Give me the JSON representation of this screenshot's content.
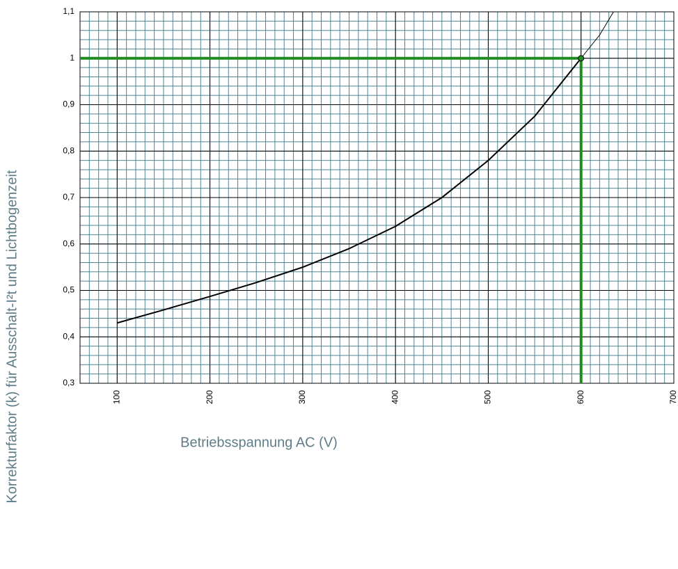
{
  "chart_data": {
    "type": "line",
    "xlabel": "Betriebsspannung AC (V)",
    "ylabel": "Korrekturfaktor (k) für Ausschalt-I²t und Lichtbogenzeit",
    "xlim": [
      60,
      700
    ],
    "ylim": [
      0.3,
      1.1
    ],
    "xticks": [
      100,
      200,
      300,
      400,
      500,
      600,
      700
    ],
    "yticks": [
      {
        "value": 0.3,
        "label": "0,3"
      },
      {
        "value": 0.4,
        "label": "0,4"
      },
      {
        "value": 0.5,
        "label": "0,5"
      },
      {
        "value": 0.6,
        "label": "0,6"
      },
      {
        "value": 0.7,
        "label": "0,7"
      },
      {
        "value": 0.8,
        "label": "0,8"
      },
      {
        "value": 0.9,
        "label": "0,9"
      },
      {
        "value": 1,
        "label": "1"
      },
      {
        "value": 1.1,
        "label": "1,1"
      }
    ],
    "grid": true,
    "minor_grid": {
      "x_step": 10,
      "y_step": 0.02,
      "color": "#4f8590"
    },
    "series": [
      {
        "color": "#000000",
        "x": [
          100,
          150,
          200,
          250,
          300,
          350,
          400,
          450,
          500,
          550,
          600
        ],
        "values": [
          0.43,
          0.458,
          0.487,
          0.517,
          0.55,
          0.59,
          0.638,
          0.7,
          0.78,
          0.875,
          1.0
        ]
      },
      {
        "color": "#000000",
        "x": [
          600,
          620,
          635
        ],
        "values": [
          1.0,
          1.05,
          1.1
        ]
      }
    ],
    "reference": {
      "x": 600,
      "y": 1,
      "color": "#1e8c1e"
    }
  }
}
